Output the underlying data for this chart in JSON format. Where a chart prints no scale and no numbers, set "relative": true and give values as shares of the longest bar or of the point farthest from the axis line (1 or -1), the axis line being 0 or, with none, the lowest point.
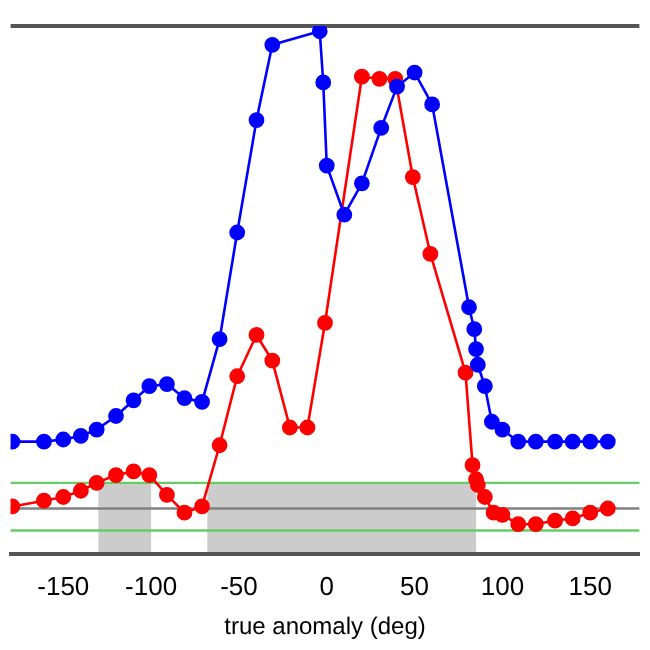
{
  "chart_data": {
    "type": "line",
    "relative": true,
    "xlabel": "true anomaly (deg)",
    "xlim": [
      -180,
      178
    ],
    "xticks": [
      -150,
      -100,
      -50,
      0,
      50,
      100,
      150
    ],
    "grid": false,
    "legend": false,
    "marker": "circle",
    "line_style": "solid",
    "series": [
      {
        "color": "#0000ff",
        "x": [
          -179,
          -161,
          -150,
          -140,
          -131,
          -120,
          -110,
          -101,
          -91,
          -81,
          -71,
          -61,
          -51,
          -40,
          -31,
          -4,
          -2,
          0,
          10,
          20,
          31,
          40,
          50,
          60,
          81,
          84,
          85,
          86,
          90,
          94,
          100,
          109,
          119,
          130,
          140,
          150,
          160
        ],
        "values": [
          0.215,
          0.215,
          0.219,
          0.226,
          0.238,
          0.264,
          0.294,
          0.321,
          0.325,
          0.298,
          0.291,
          0.411,
          0.615,
          0.83,
          0.974,
          1,
          0.902,
          0.743,
          0.649,
          0.709,
          0.815,
          0.894,
          0.921,
          0.86,
          0.472,
          0.43,
          0.392,
          0.362,
          0.321,
          0.253,
          0.238,
          0.215,
          0.215,
          0.215,
          0.215,
          0.215,
          0.215
        ]
      },
      {
        "color": "#ff0000",
        "x": [
          -179,
          -161,
          -150,
          -140,
          -131,
          -120,
          -110,
          -101,
          -91,
          -81,
          -71,
          -61,
          -51,
          -40,
          -31,
          -21,
          -11,
          -1,
          20,
          30,
          39,
          49,
          59,
          79,
          83,
          85,
          86,
          90,
          95,
          100,
          109,
          119,
          130,
          140,
          150,
          160
        ],
        "values": [
          0.091,
          0.102,
          0.109,
          0.121,
          0.136,
          0.151,
          0.158,
          0.151,
          0.113,
          0.079,
          0.091,
          0.208,
          0.34,
          0.419,
          0.37,
          0.242,
          0.242,
          0.442,
          0.913,
          0.909,
          0.909,
          0.721,
          0.574,
          0.347,
          0.17,
          0.143,
          0.132,
          0.109,
          0.079,
          0.075,
          0.057,
          0.057,
          0.064,
          0.068,
          0.079,
          0.087
        ]
      }
    ],
    "ref_lines": [
      {
        "axis": "y",
        "value": 0.136,
        "color": "#66cc66"
      },
      {
        "axis": "y",
        "value": 0.087,
        "color": "#808080"
      },
      {
        "axis": "y",
        "value": 0.045,
        "color": "#66cc66"
      }
    ],
    "bands": [
      {
        "axis": "x",
        "from": -130,
        "to": -100,
        "color": "#cccccc"
      },
      {
        "axis": "x",
        "from": -68,
        "to": 85,
        "color": "#cccccc"
      }
    ]
  }
}
